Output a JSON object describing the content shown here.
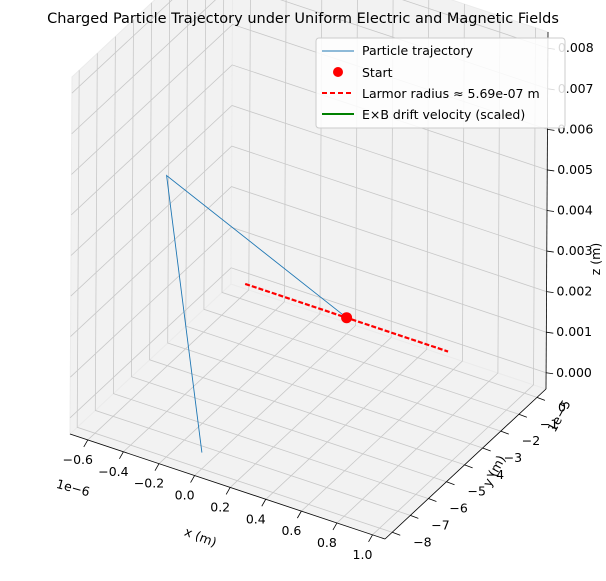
{
  "chart_data": {
    "type": "line3d",
    "title": "Charged Particle Trajectory under Uniform Electric and Magnetic Fields",
    "xlabel": "x (m)",
    "ylabel": "y (m)",
    "zlabel": "z (m)",
    "x_offset_text": "1e−6",
    "y_offset_text": "1e−5",
    "x_ticks": [
      "−0.6",
      "−0.4",
      "−0.2",
      "0.0",
      "0.2",
      "0.4",
      "0.6",
      "0.8",
      "1.0"
    ],
    "y_ticks": [
      "−8",
      "−7",
      "−6",
      "−5",
      "−4",
      "−3",
      "−2",
      "−1",
      "0"
    ],
    "z_ticks": [
      "0.000",
      "0.001",
      "0.002",
      "0.003",
      "0.004",
      "0.005",
      "0.006",
      "0.007",
      "0.008"
    ],
    "xlim": [
      -7e-07,
      1.07e-06
    ],
    "ylim": [
      -8.4e-05,
      5e-06
    ],
    "zlim": [
      -0.0004,
      0.0084
    ],
    "grid": true,
    "legend_position": "top-right",
    "legend": [
      {
        "label": "Particle trajectory",
        "color": "#1f77b4",
        "style": "line"
      },
      {
        "label": "Start",
        "color": "#ff0000",
        "style": "marker"
      },
      {
        "label": "Larmor radius ≈ 5.69e-07 m",
        "color": "#ff0000",
        "style": "dashed"
      },
      {
        "label": "E×B drift velocity (scaled)",
        "color": "#008000",
        "style": "line"
      }
    ],
    "series": [
      {
        "name": "Particle trajectory",
        "color": "#1f77b4",
        "points": [
          [
            0.0,
            0.0,
            0.0
          ],
          [
            -5.7e-07,
            -4.4e-05,
            0.0045
          ],
          [
            0.0,
            -8e-05,
            0.0
          ]
        ]
      },
      {
        "name": "Larmor radius ≈ 5.69e-07 m",
        "color": "#ff0000",
        "points": [
          [
            -5.7e-07,
            0.0,
            0.0
          ],
          [
            5.7e-07,
            0.0,
            0.0
          ]
        ]
      },
      {
        "name": "Start",
        "color": "#ff0000",
        "points": [
          [
            0.0,
            0.0,
            0.0
          ]
        ]
      }
    ]
  }
}
